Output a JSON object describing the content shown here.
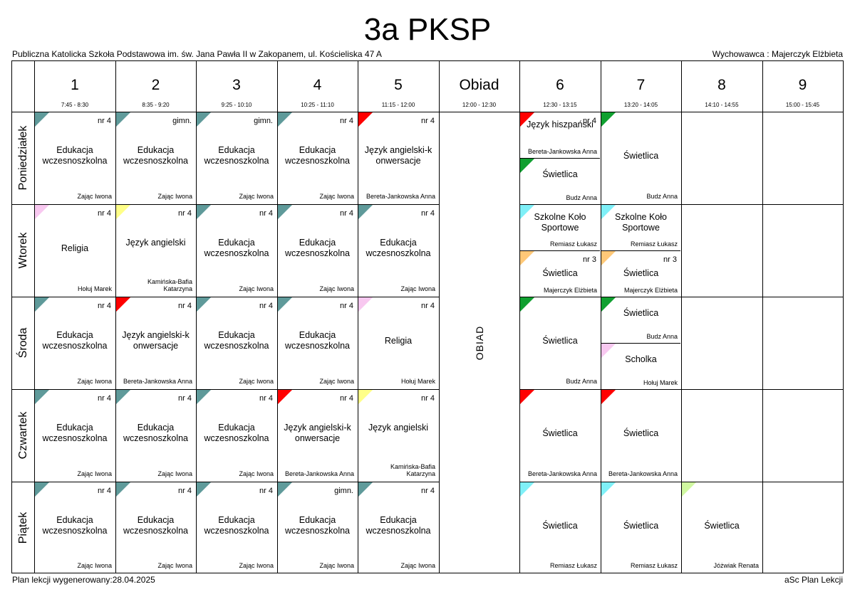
{
  "title": "3a PKSP",
  "school": "Publiczna Katolicka Szkoła Podstawowa im. św. Jana Pawła II w Zakopanem, ul. Kościeliska 47 A",
  "form_teacher": "Wychowawca : Majerczyk Elżbieta",
  "footer_left": "Plan lekcji wygenerowany:28.04.2025",
  "footer_right": "aSc Plan Lekcji",
  "colors": {
    "teal": "#5f9a9a",
    "red": "#ff0000",
    "pink": "#f8c8f0",
    "yellow": "#ffff88",
    "cyan": "#7ff0f8",
    "orange": "#ffc878",
    "green": "#10a030",
    "lime": "#d0f8a0"
  },
  "periods": [
    {
      "num": "1",
      "time": "7:45 - 8:30"
    },
    {
      "num": "2",
      "time": "8:35 - 9:20"
    },
    {
      "num": "3",
      "time": "9:25 - 10:10"
    },
    {
      "num": "4",
      "time": "10:25 - 11:10"
    },
    {
      "num": "5",
      "time": "11:15 - 12:00"
    },
    {
      "num": "Obiad",
      "time": "12:00 - 12:30"
    },
    {
      "num": "6",
      "time": "12:30 - 13:15"
    },
    {
      "num": "7",
      "time": "13:20 - 14:05"
    },
    {
      "num": "8",
      "time": "14:10 - 14:55"
    },
    {
      "num": "9",
      "time": "15:00 - 15:45"
    }
  ],
  "days": [
    "Poniedziałek",
    "Wtorek",
    "Środa",
    "Czwartek",
    "Piątek"
  ],
  "obiad_label": "OBIAD",
  "lessons": {
    "pon_1": {
      "room": "nr 4",
      "subject": "Edukacja wczesnoszkolna",
      "teacher": "Zając Iwona",
      "color": "teal"
    },
    "pon_2": {
      "room": "gimn.",
      "subject": "Edukacja wczesnoszkolna",
      "teacher": "Zając Iwona",
      "color": "teal"
    },
    "pon_3": {
      "room": "gimn.",
      "subject": "Edukacja wczesnoszkolna",
      "teacher": "Zając Iwona",
      "color": "teal"
    },
    "pon_4": {
      "room": "nr 4",
      "subject": "Edukacja wczesnoszkolna",
      "teacher": "Zając Iwona",
      "color": "teal"
    },
    "pon_5": {
      "room": "nr 4",
      "subject": "Język angielski-k onwersacje",
      "teacher": "Bereta-Jankowska Anna",
      "color": "red"
    },
    "pon_6a": {
      "room": "nr 4",
      "subject": "Język hiszpański",
      "teacher": "Bereta-Jankowska Anna",
      "color": "red"
    },
    "pon_6b": {
      "room": "",
      "subject": "Świetlica",
      "teacher": "Budz Anna",
      "color": "green"
    },
    "pon_7": {
      "room": "",
      "subject": "Świetlica",
      "teacher": "Budz Anna",
      "color": "green"
    },
    "wt_1": {
      "room": "nr 4",
      "subject": "Religia",
      "teacher": "Hołuj Marek",
      "color": "pink"
    },
    "wt_2": {
      "room": "nr 4",
      "subject": "Język angielski",
      "teacher": "Kamińska-Bafia Katarzyna",
      "color": "yellow"
    },
    "wt_3": {
      "room": "nr 4",
      "subject": "Edukacja wczesnoszkolna",
      "teacher": "Zając Iwona",
      "color": "teal"
    },
    "wt_4": {
      "room": "nr 4",
      "subject": "Edukacja wczesnoszkolna",
      "teacher": "Zając Iwona",
      "color": "teal"
    },
    "wt_5": {
      "room": "nr 4",
      "subject": "Edukacja wczesnoszkolna",
      "teacher": "Zając Iwona",
      "color": "teal"
    },
    "wt_6a": {
      "room": "",
      "subject": "Szkolne Koło Sportowe",
      "teacher": "Remiasz Łukasz",
      "color": "cyan"
    },
    "wt_6b": {
      "room": "nr 3",
      "subject": "Świetlica",
      "teacher": "Majerczyk Elżbieta",
      "color": "orange"
    },
    "wt_7a": {
      "room": "",
      "subject": "Szkolne Koło Sportowe",
      "teacher": "Remiasz Łukasz",
      "color": "cyan"
    },
    "wt_7b": {
      "room": "nr 3",
      "subject": "Świetlica",
      "teacher": "Majerczyk Elżbieta",
      "color": "orange"
    },
    "sr_1": {
      "room": "nr 4",
      "subject": "Edukacja wczesnoszkolna",
      "teacher": "Zając Iwona",
      "color": "teal"
    },
    "sr_2": {
      "room": "nr 4",
      "subject": "Język angielski-k onwersacje",
      "teacher": "Bereta-Jankowska Anna",
      "color": "red"
    },
    "sr_3": {
      "room": "nr 4",
      "subject": "Edukacja wczesnoszkolna",
      "teacher": "Zając Iwona",
      "color": "teal"
    },
    "sr_4": {
      "room": "nr 4",
      "subject": "Edukacja wczesnoszkolna",
      "teacher": "Zając Iwona",
      "color": "teal"
    },
    "sr_5": {
      "room": "nr 4",
      "subject": "Religia",
      "teacher": "Hołuj Marek",
      "color": "pink"
    },
    "sr_6": {
      "room": "",
      "subject": "Świetlica",
      "teacher": "Budz Anna",
      "color": "green"
    },
    "sr_7a": {
      "room": "",
      "subject": "Świetlica",
      "teacher": "Budz Anna",
      "color": "green"
    },
    "sr_7b": {
      "room": "",
      "subject": "Scholka",
      "teacher": "Hołuj Marek",
      "color": "pink"
    },
    "cz_1": {
      "room": "nr 4",
      "subject": "Edukacja wczesnoszkolna",
      "teacher": "Zając Iwona",
      "color": "teal"
    },
    "cz_2": {
      "room": "nr 4",
      "subject": "Edukacja wczesnoszkolna",
      "teacher": "Zając Iwona",
      "color": "teal"
    },
    "cz_3": {
      "room": "nr 4",
      "subject": "Edukacja wczesnoszkolna",
      "teacher": "Zając Iwona",
      "color": "teal"
    },
    "cz_4": {
      "room": "nr 4",
      "subject": "Język angielski-k onwersacje",
      "teacher": "Bereta-Jankowska Anna",
      "color": "red"
    },
    "cz_5": {
      "room": "nr 4",
      "subject": "Język angielski",
      "teacher": "Kamińska-Bafia Katarzyna",
      "color": "yellow"
    },
    "cz_6": {
      "room": "",
      "subject": "Świetlica",
      "teacher": "Bereta-Jankowska Anna",
      "color": "red"
    },
    "cz_7": {
      "room": "",
      "subject": "Świetlica",
      "teacher": "Bereta-Jankowska Anna",
      "color": "red"
    },
    "pt_1": {
      "room": "nr 4",
      "subject": "Edukacja wczesnoszkolna",
      "teacher": "Zając Iwona",
      "color": "teal"
    },
    "pt_2": {
      "room": "nr 4",
      "subject": "Edukacja wczesnoszkolna",
      "teacher": "Zając Iwona",
      "color": "teal"
    },
    "pt_3": {
      "room": "nr 4",
      "subject": "Edukacja wczesnoszkolna",
      "teacher": "Zając Iwona",
      "color": "teal"
    },
    "pt_4": {
      "room": "gimn.",
      "subject": "Edukacja wczesnoszkolna",
      "teacher": "Zając Iwona",
      "color": "teal"
    },
    "pt_5": {
      "room": "nr 4",
      "subject": "Edukacja wczesnoszkolna",
      "teacher": "Zając Iwona",
      "color": "teal"
    },
    "pt_6": {
      "room": "",
      "subject": "Świetlica",
      "teacher": "Remiasz Łukasz",
      "color": "cyan"
    },
    "pt_7": {
      "room": "",
      "subject": "Świetlica",
      "teacher": "Remiasz Łukasz",
      "color": "cyan"
    },
    "pt_8": {
      "room": "",
      "subject": "Świetlica",
      "teacher": "Jóżwiak Renata",
      "color": "lime"
    }
  }
}
